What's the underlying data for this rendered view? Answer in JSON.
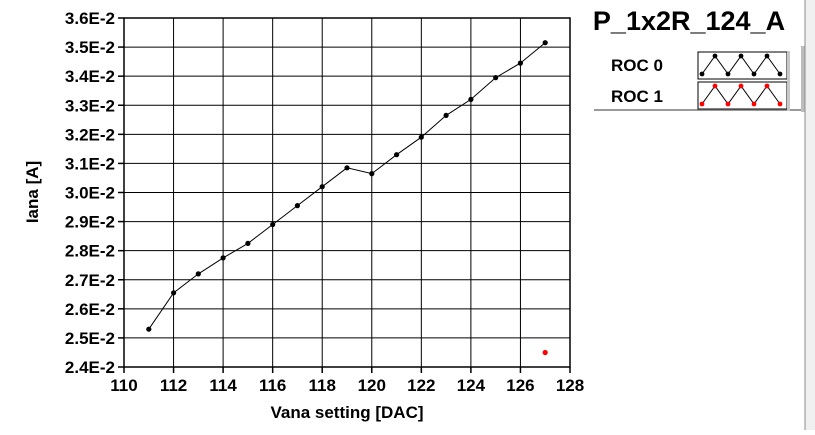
{
  "chart_data": {
    "type": "scatter",
    "title": "P_1x2R_124_A",
    "xlabel": "Vana setting [DAC]",
    "ylabel": "Iana [A]",
    "xlim": [
      110,
      128
    ],
    "ylim": [
      0.024,
      0.036
    ],
    "x_ticks": [
      "110",
      "112",
      "114",
      "116",
      "118",
      "120",
      "122",
      "124",
      "126",
      "128"
    ],
    "y_ticks": [
      "2.4E-2",
      "2.5E-2",
      "2.6E-2",
      "2.7E-2",
      "2.8E-2",
      "2.9E-2",
      "3.0E-2",
      "3.1E-2",
      "3.2E-2",
      "3.3E-2",
      "3.4E-2",
      "3.5E-2",
      "3.6E-2"
    ],
    "grid": true,
    "legend_position": "top-right",
    "series": [
      {
        "name": "ROC 0",
        "color": "#000000",
        "connected": true,
        "x": [
          111,
          112,
          113,
          114,
          115,
          116,
          117,
          118,
          119,
          120,
          121,
          122,
          123,
          124,
          125,
          126,
          127
        ],
        "y": [
          0.0253,
          0.02655,
          0.0272,
          0.02775,
          0.02825,
          0.0289,
          0.02955,
          0.0302,
          0.03085,
          0.03065,
          0.0313,
          0.0319,
          0.03265,
          0.0332,
          0.03395,
          0.03445,
          0.03515
        ]
      },
      {
        "name": "ROC 1",
        "color": "#ff0000",
        "connected": false,
        "x": [
          127
        ],
        "y": [
          0.0245
        ]
      }
    ]
  }
}
